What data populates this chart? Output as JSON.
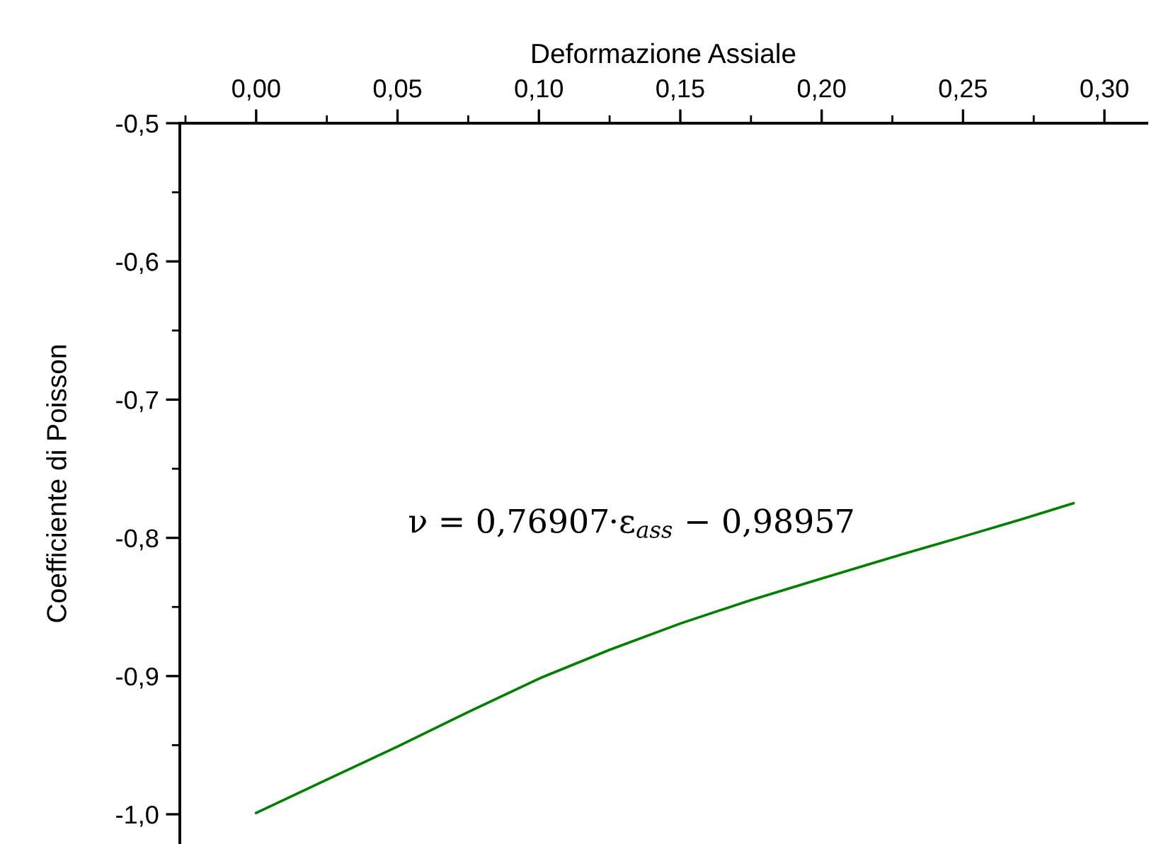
{
  "chart_data": {
    "type": "line",
    "xlabel": "Deformazione Assiale",
    "ylabel": "Coefficiente di Poisson",
    "x": [
      0,
      0.025,
      0.05,
      0.075,
      0.101,
      0.125,
      0.15,
      0.175,
      0.199,
      0.225,
      0.2485,
      0.27,
      0.289
    ],
    "series": [
      {
        "color": "#008000",
        "values": [
          -0.999,
          -0.975,
          -0.951,
          -0.926,
          -0.901,
          -0.881,
          -0.862,
          -0.845,
          -0.83,
          -0.814,
          -0.8,
          -0.787,
          -0.775
        ]
      }
    ],
    "xlim": [
      -0.027,
      0.315
    ],
    "xticks": [
      {
        "value": 0,
        "label": "0,00"
      },
      {
        "value": 0.05,
        "label": "0,05"
      },
      {
        "value": 0.1,
        "label": "0,10"
      },
      {
        "value": 0.15,
        "label": "0,15"
      },
      {
        "value": 0.2,
        "label": "0,20"
      },
      {
        "value": 0.25,
        "label": "0,25"
      },
      {
        "value": 0.3,
        "label": "0,30"
      }
    ],
    "ylim": [
      -1.0215,
      -0.5
    ],
    "yticks": [
      {
        "value": -1.0,
        "label": "-1,0"
      },
      {
        "value": -0.9,
        "label": "-0,9"
      },
      {
        "value": -0.8,
        "label": "-0,8"
      },
      {
        "value": -0.7,
        "label": "-0,7"
      },
      {
        "value": -0.6,
        "label": "-0,6"
      },
      {
        "value": -0.5,
        "label": "-0,5"
      }
    ],
    "annotations": [
      "ν = 0,76907·ε$_{ass}$ − 0,98957"
    ],
    "grid": false,
    "legend": false,
    "marker": "none",
    "line_style": "solid"
  }
}
